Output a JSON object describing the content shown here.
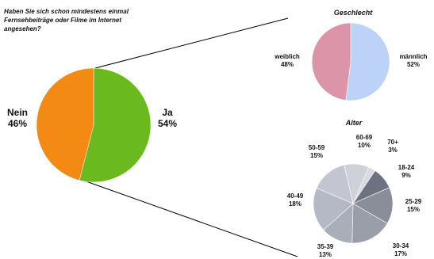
{
  "question_lines": [
    "Haben Sie sich schon mindestens einmal",
    "Fernsehbeiträge oder Filme im Internet",
    "angesehen?"
  ],
  "chart_data": [
    {
      "type": "pie",
      "title": "",
      "slices": [
        {
          "name": "Ja",
          "value": 54,
          "label": "54%",
          "color": "#6ab91e"
        },
        {
          "name": "Nein",
          "value": 46,
          "label": "46%",
          "color": "#f38a13"
        }
      ]
    },
    {
      "type": "pie",
      "title": "Geschlecht",
      "slices": [
        {
          "name": "männlich",
          "value": 52,
          "label": "52%",
          "color": "#bcd3f7"
        },
        {
          "name": "weiblich",
          "value": 48,
          "label": "48%",
          "color": "#dc95a8"
        }
      ]
    },
    {
      "type": "pie",
      "title": "Alter",
      "slices": [
        {
          "name": "70+",
          "value": 3,
          "label": "3%",
          "color": "#d9dae2"
        },
        {
          "name": "18-24",
          "value": 9,
          "label": "9%",
          "color": "#6e7280"
        },
        {
          "name": "25-29",
          "value": 15,
          "label": "15%",
          "color": "#8a8e99"
        },
        {
          "name": "30-34",
          "value": 17,
          "label": "17%",
          "color": "#9a9ea9"
        },
        {
          "name": "35-39",
          "value": 13,
          "label": "13%",
          "color": "#aaaeb9"
        },
        {
          "name": "40-49",
          "value": 18,
          "label": "18%",
          "color": "#b5b9c5"
        },
        {
          "name": "50-59",
          "value": 15,
          "label": "15%",
          "color": "#c3c6d0"
        },
        {
          "name": "60-69",
          "value": 10,
          "label": "10%",
          "color": "#cfd1d9"
        }
      ]
    }
  ]
}
